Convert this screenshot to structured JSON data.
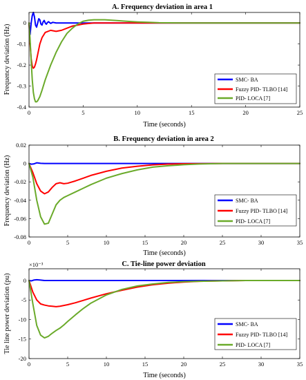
{
  "chart_data": [
    {
      "type": "line",
      "title": "A. Frequency deviation in area 1",
      "xlabel": "Time (seconds)",
      "ylabel": "Frequency deviation (Hz)",
      "xlim": [
        0,
        25
      ],
      "ylim": [
        -0.4,
        0.05
      ],
      "xticks": [
        0,
        5,
        10,
        15,
        20,
        25
      ],
      "xtick_labels": [
        "0",
        "5",
        "10",
        "15",
        "20",
        "25"
      ],
      "yticks": [
        -0.4,
        -0.3,
        -0.2,
        -0.1,
        0
      ],
      "ytick_labels": [
        "-0.4",
        "-0.3",
        "-0.2",
        "-0.1",
        "0"
      ],
      "exponent_label": "",
      "legend_position": "lower-right",
      "series": [
        {
          "name": "SMC- BA",
          "color": "#0000ff",
          "x": [
            0,
            0.1,
            0.2,
            0.3,
            0.4,
            0.5,
            0.6,
            0.7,
            0.8,
            0.9,
            1.0,
            1.1,
            1.2,
            1.3,
            1.4,
            1.5,
            1.6,
            1.7,
            1.8,
            2.0,
            2.2,
            2.5,
            3.0,
            25
          ],
          "y": [
            0,
            -0.055,
            0.0,
            0.035,
            0.05,
            0.03,
            -0.01,
            -0.02,
            0.0,
            0.02,
            0.015,
            -0.005,
            -0.01,
            0.005,
            0.012,
            0.0,
            -0.006,
            0.002,
            0.006,
            -0.002,
            0.003,
            0.0,
            0.0,
            0.0
          ]
        },
        {
          "name": "Fuzzy PID- TLBO [14]",
          "color": "#ff0000",
          "x": [
            0,
            0.1,
            0.2,
            0.3,
            0.4,
            0.5,
            0.6,
            0.7,
            0.8,
            1.0,
            1.2,
            1.5,
            2.0,
            2.5,
            3.0,
            3.5,
            4.0,
            5.0,
            6.0,
            8.0,
            25
          ],
          "y": [
            0,
            -0.1,
            -0.17,
            -0.205,
            -0.215,
            -0.21,
            -0.195,
            -0.175,
            -0.15,
            -0.1,
            -0.07,
            -0.045,
            -0.035,
            -0.04,
            -0.035,
            -0.025,
            -0.015,
            -0.005,
            0.0,
            0.0,
            0.0
          ]
        },
        {
          "name": "PID- LOCA [7]",
          "color": "#6aaa2a",
          "x": [
            0,
            0.1,
            0.2,
            0.3,
            0.4,
            0.5,
            0.6,
            0.7,
            0.8,
            1.0,
            1.2,
            1.5,
            2.0,
            2.5,
            3.0,
            3.5,
            4.0,
            4.5,
            5.0,
            5.5,
            6.0,
            7.0,
            8.0,
            9.0,
            10,
            11,
            12,
            14,
            16,
            25
          ],
          "y": [
            0,
            -0.08,
            -0.18,
            -0.27,
            -0.33,
            -0.36,
            -0.375,
            -0.375,
            -0.37,
            -0.35,
            -0.32,
            -0.27,
            -0.2,
            -0.14,
            -0.09,
            -0.05,
            -0.025,
            -0.005,
            0.008,
            0.013,
            0.015,
            0.015,
            0.012,
            0.008,
            0.005,
            0.003,
            0.001,
            0.0,
            0.0,
            0.0
          ]
        }
      ]
    },
    {
      "type": "line",
      "title": "B. Frequency deviation in area 2",
      "xlabel": "Time (seconds)",
      "ylabel": "Frequency deviation (Hz)",
      "xlim": [
        0,
        35
      ],
      "ylim": [
        -0.08,
        0.02
      ],
      "xticks": [
        0,
        5,
        10,
        15,
        20,
        25,
        30,
        35
      ],
      "xtick_labels": [
        "0",
        "5",
        "10",
        "15",
        "20",
        "25",
        "30",
        "35"
      ],
      "yticks": [
        -0.08,
        -0.06,
        -0.04,
        -0.02,
        0,
        0.02
      ],
      "ytick_labels": [
        "-0.08",
        "-0.06",
        "-0.04",
        "-0.02",
        "0",
        "0.02"
      ],
      "exponent_label": "",
      "legend_position": "lower-right",
      "series": [
        {
          "name": "SMC- BA",
          "color": "#0000ff",
          "x": [
            0,
            0.3,
            0.6,
            1.0,
            1.5,
            2.0,
            35
          ],
          "y": [
            0,
            -0.0008,
            -0.0005,
            0.0007,
            0.0002,
            0.0,
            0.0
          ]
        },
        {
          "name": "Fuzzy PID- TLBO [14]",
          "color": "#ff0000",
          "x": [
            0,
            0.5,
            1.0,
            1.5,
            2.0,
            2.5,
            3.0,
            3.5,
            4.0,
            4.5,
            5.0,
            6.0,
            7.0,
            8.0,
            10,
            12,
            14,
            16,
            18,
            20,
            25,
            35
          ],
          "y": [
            0,
            -0.01,
            -0.022,
            -0.03,
            -0.033,
            -0.031,
            -0.026,
            -0.022,
            -0.021,
            -0.022,
            -0.0215,
            -0.019,
            -0.016,
            -0.013,
            -0.0085,
            -0.005,
            -0.003,
            -0.0015,
            -0.0007,
            -0.0003,
            0.0,
            0.0
          ]
        },
        {
          "name": "PID- LOCA [7]",
          "color": "#6aaa2a",
          "x": [
            0,
            0.5,
            1.0,
            1.5,
            2.0,
            2.5,
            3.0,
            3.5,
            4.0,
            4.5,
            5.0,
            6.0,
            7.0,
            8.0,
            10,
            12,
            14,
            16,
            18,
            20,
            22,
            25,
            35
          ],
          "y": [
            0,
            -0.015,
            -0.04,
            -0.058,
            -0.066,
            -0.065,
            -0.055,
            -0.045,
            -0.04,
            -0.037,
            -0.035,
            -0.031,
            -0.027,
            -0.023,
            -0.016,
            -0.011,
            -0.007,
            -0.004,
            -0.0025,
            -0.0013,
            -0.0006,
            0.0,
            0.0
          ]
        }
      ]
    },
    {
      "type": "line",
      "title": "C. Tie-line power deviation",
      "xlabel": "Time (seconds)",
      "ylabel": "Tie line power deviation (pu)",
      "xlim": [
        0,
        35
      ],
      "ylim": [
        -0.02,
        0.003
      ],
      "xticks": [
        0,
        5,
        10,
        15,
        20,
        25,
        30,
        35
      ],
      "xtick_labels": [
        "0",
        "5",
        "10",
        "15",
        "20",
        "25",
        "30",
        "35"
      ],
      "yticks": [
        -0.02,
        -0.015,
        -0.01,
        -0.005,
        0
      ],
      "ytick_labels": [
        "-20",
        "-15",
        "-10",
        "-5",
        "0"
      ],
      "exponent_label": "×10⁻³",
      "legend_position": "lower-right",
      "series": [
        {
          "name": "SMC- BA",
          "color": "#0000ff",
          "x": [
            0,
            0.3,
            0.6,
            1.0,
            1.5,
            2.0,
            35
          ],
          "y": [
            0,
            -0.0001,
            0.0001,
            0.0002,
            0.0001,
            0.0,
            0.0
          ]
        },
        {
          "name": "Fuzzy PID- TLBO [14]",
          "color": "#ff0000",
          "x": [
            0,
            0.5,
            1.0,
            1.5,
            2.0,
            2.5,
            3.0,
            3.5,
            4.0,
            4.5,
            5.0,
            6.0,
            7.0,
            8.0,
            10,
            12,
            14,
            16,
            18,
            20,
            22,
            25,
            28,
            35
          ],
          "y": [
            0,
            -0.003,
            -0.005,
            -0.006,
            -0.0063,
            -0.0065,
            -0.0066,
            -0.0067,
            -0.0066,
            -0.0064,
            -0.0062,
            -0.0057,
            -0.0051,
            -0.0045,
            -0.0034,
            -0.0025,
            -0.0017,
            -0.0011,
            -0.0007,
            -0.0004,
            -0.0002,
            -0.0001,
            0.0,
            0.0
          ]
        },
        {
          "name": "PID- LOCA [7]",
          "color": "#6aaa2a",
          "x": [
            0,
            0.5,
            1.0,
            1.5,
            2.0,
            2.5,
            3.0,
            3.5,
            4.0,
            4.5,
            5.0,
            6.0,
            7.0,
            8.0,
            10,
            12,
            14,
            16,
            18,
            20,
            22,
            25,
            28,
            35
          ],
          "y": [
            0,
            -0.006,
            -0.0115,
            -0.014,
            -0.0147,
            -0.0143,
            -0.0135,
            -0.0128,
            -0.0122,
            -0.0114,
            -0.0105,
            -0.0088,
            -0.0072,
            -0.0058,
            -0.0037,
            -0.0023,
            -0.0014,
            -0.0009,
            -0.0005,
            -0.0003,
            -0.0002,
            -0.0001,
            0.0,
            0.0
          ]
        }
      ]
    }
  ]
}
